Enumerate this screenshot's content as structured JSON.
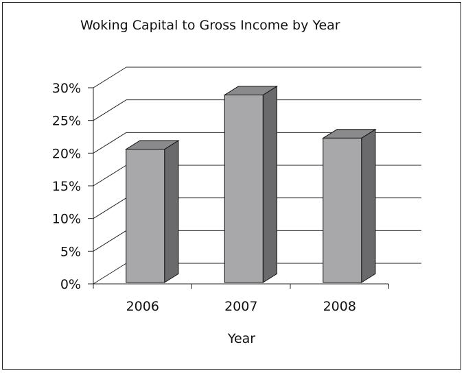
{
  "chart_data": {
    "type": "bar",
    "title": "Woking Capital to Gross Income  by Year",
    "xlabel": "Year",
    "ylabel": "",
    "categories": [
      "2006",
      "2007",
      "2008"
    ],
    "values": [
      0.206,
      0.289,
      0.223
    ],
    "ylim": [
      0,
      0.3
    ],
    "y_ticks": [
      "0%",
      "5%",
      "10%",
      "15%",
      "20%",
      "25%",
      "30%"
    ],
    "grid": true,
    "legend": "none",
    "style": "3d-column",
    "colors": {
      "bar_front": "#a8a8aa",
      "bar_side": "#6a6a6c",
      "bar_top": "#8a8a8c",
      "grid": "#222222"
    }
  }
}
